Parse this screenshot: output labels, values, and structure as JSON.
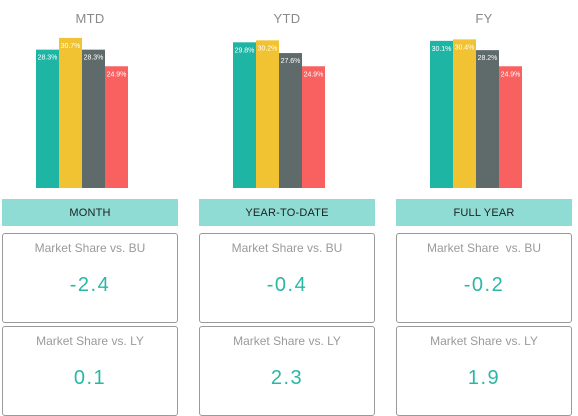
{
  "colors": {
    "series": [
      "#1fb5a5",
      "#f1c232",
      "#5f6b6a",
      "#f96161"
    ],
    "band": "#8fdcd5",
    "value": "#2ab7a6"
  },
  "chart_data": [
    {
      "type": "bar",
      "title": "MTD",
      "categories": [
        "",
        "",
        "",
        ""
      ],
      "values": [
        28.3,
        30.7,
        28.3,
        24.9
      ],
      "data_labels": [
        "28.3%",
        "30.7%",
        "28.3%",
        "24.9%"
      ],
      "ylim": [
        0,
        31.5
      ]
    },
    {
      "type": "bar",
      "title": "YTD",
      "categories": [
        "",
        "",
        "",
        ""
      ],
      "values": [
        29.8,
        30.2,
        27.6,
        24.9
      ],
      "data_labels": [
        "29.8%",
        "30.2%",
        "27.6%",
        "24.9%"
      ],
      "ylim": [
        0,
        31.5
      ]
    },
    {
      "type": "bar",
      "title": "FY",
      "categories": [
        "",
        "",
        "",
        ""
      ],
      "values": [
        30.1,
        30.4,
        28.2,
        24.9
      ],
      "data_labels": [
        "30.1%",
        "30.4%",
        "28.2%",
        "24.9%"
      ],
      "ylim": [
        0,
        31.5
      ]
    }
  ],
  "panels": [
    {
      "band_label": "MONTH",
      "bu": {
        "label": "Market Share vs. BU",
        "value": "-2.4"
      },
      "ly": {
        "label": "Market Share vs. LY",
        "value": "0.1"
      }
    },
    {
      "band_label": "YEAR-TO-DATE",
      "bu": {
        "label": "Market Share vs. BU",
        "value": "-0.4"
      },
      "ly": {
        "label": "Market Share vs. LY",
        "value": "2.3"
      }
    },
    {
      "band_label": "FULL YEAR",
      "bu": {
        "label": "Market Share  vs. BU",
        "value": "-0.2"
      },
      "ly": {
        "label": "Market Share vs. LY",
        "value": "1.9"
      }
    }
  ]
}
